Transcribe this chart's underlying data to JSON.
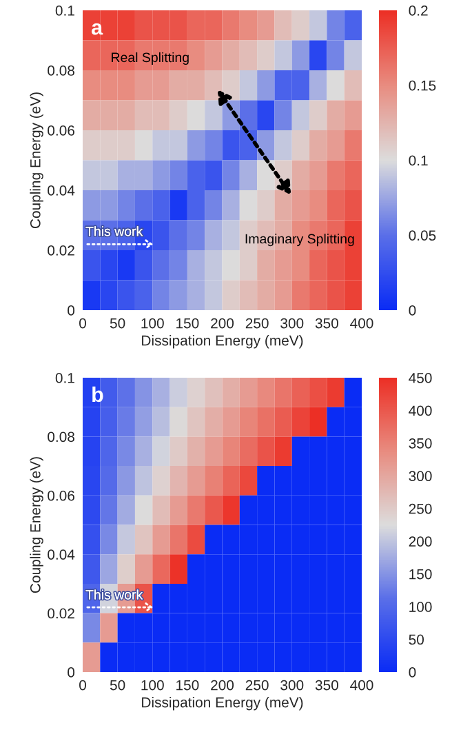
{
  "chart_data": [
    {
      "type": "heatmap",
      "xlabel": "Dissipation Energy (meV)",
      "ylabel": "Coupling Energy (eV)",
      "xlim": [
        0,
        400
      ],
      "xticks": [
        0,
        50,
        100,
        150,
        200,
        250,
        300,
        350,
        400
      ],
      "ylim": [
        0,
        0.1
      ],
      "yticks": [
        0,
        0.02,
        0.04,
        0.06,
        0.08,
        0.1
      ],
      "clim": [
        0,
        0.2
      ],
      "cticks": [
        0,
        0.05,
        0.1,
        0.15,
        0.2
      ],
      "annotations": [
        "a",
        "Real Splitting",
        "Imaginary Splitting",
        "This work"
      ],
      "cells": [
        [
          0.19,
          0.19,
          0.19,
          0.18,
          0.18,
          0.18,
          0.17,
          0.17,
          0.16,
          0.15,
          0.14,
          0.12,
          0.11,
          0.09,
          0.06,
          0.04
        ],
        [
          0.17,
          0.17,
          0.17,
          0.16,
          0.16,
          0.16,
          0.15,
          0.14,
          0.13,
          0.12,
          0.11,
          0.09,
          0.07,
          0.02,
          0.06,
          0.09
        ],
        [
          0.15,
          0.15,
          0.15,
          0.14,
          0.14,
          0.13,
          0.13,
          0.12,
          0.11,
          0.09,
          0.07,
          0.04,
          0.04,
          0.08,
          0.1,
          0.12
        ],
        [
          0.13,
          0.13,
          0.13,
          0.12,
          0.12,
          0.11,
          0.1,
          0.09,
          0.07,
          0.05,
          0.02,
          0.06,
          0.09,
          0.11,
          0.13,
          0.14
        ],
        [
          0.11,
          0.11,
          0.11,
          0.1,
          0.09,
          0.09,
          0.07,
          0.06,
          0.03,
          0.04,
          0.07,
          0.09,
          0.11,
          0.13,
          0.14,
          0.16
        ],
        [
          0.09,
          0.09,
          0.08,
          0.08,
          0.07,
          0.06,
          0.04,
          0.03,
          0.06,
          0.08,
          0.1,
          0.11,
          0.13,
          0.14,
          0.16,
          0.17
        ],
        [
          0.07,
          0.07,
          0.06,
          0.05,
          0.04,
          0.01,
          0.04,
          0.06,
          0.08,
          0.1,
          0.11,
          0.13,
          0.14,
          0.15,
          0.17,
          0.18
        ],
        [
          0.05,
          0.05,
          0.04,
          0.02,
          0.03,
          0.05,
          0.06,
          0.08,
          0.09,
          0.11,
          0.12,
          0.13,
          0.15,
          0.16,
          0.17,
          0.19
        ],
        [
          0.03,
          0.02,
          0.01,
          0.03,
          0.05,
          0.06,
          0.08,
          0.09,
          0.1,
          0.11,
          0.13,
          0.14,
          0.15,
          0.17,
          0.18,
          0.19
        ],
        [
          0.01,
          0.02,
          0.03,
          0.04,
          0.06,
          0.07,
          0.08,
          0.09,
          0.11,
          0.12,
          0.13,
          0.14,
          0.16,
          0.17,
          0.18,
          0.19
        ]
      ]
    },
    {
      "type": "heatmap",
      "xlabel": "Dissipation Energy (meV)",
      "ylabel": "Coupling Energy (eV)",
      "xlim": [
        0,
        400
      ],
      "xticks": [
        0,
        50,
        100,
        150,
        200,
        250,
        300,
        350,
        400
      ],
      "ylim": [
        0,
        0.1
      ],
      "yticks": [
        0,
        0.02,
        0.04,
        0.06,
        0.08,
        0.1
      ],
      "clim": [
        0,
        450
      ],
      "cticks": [
        0,
        50,
        100,
        150,
        200,
        250,
        300,
        350,
        400,
        450
      ],
      "annotations": [
        "b",
        "This work"
      ],
      "cells": [
        [
          35,
          80,
          115,
          150,
          180,
          210,
          240,
          265,
          290,
          315,
          340,
          365,
          390,
          410,
          435,
          0
        ],
        [
          40,
          85,
          125,
          160,
          195,
          230,
          260,
          290,
          315,
          345,
          370,
          395,
          425,
          450,
          0,
          0
        ],
        [
          40,
          95,
          140,
          180,
          215,
          250,
          285,
          315,
          345,
          375,
          405,
          435,
          0,
          0,
          0,
          0
        ],
        [
          45,
          105,
          155,
          200,
          240,
          280,
          315,
          350,
          385,
          420,
          0,
          0,
          0,
          0,
          0,
          0
        ],
        [
          50,
          120,
          175,
          225,
          270,
          315,
          360,
          400,
          440,
          0,
          0,
          0,
          0,
          0,
          0,
          0
        ],
        [
          60,
          140,
          205,
          260,
          315,
          365,
          415,
          0,
          0,
          0,
          0,
          0,
          0,
          0,
          0,
          0
        ],
        [
          75,
          170,
          245,
          315,
          380,
          445,
          0,
          0,
          0,
          0,
          0,
          0,
          0,
          0,
          0,
          0
        ],
        [
          95,
          215,
          315,
          405,
          0,
          0,
          0,
          0,
          0,
          0,
          0,
          0,
          0,
          0,
          0,
          0
        ],
        [
          140,
          315,
          0,
          0,
          0,
          0,
          0,
          0,
          0,
          0,
          0,
          0,
          0,
          0,
          0,
          0
        ],
        [
          315,
          0,
          0,
          0,
          0,
          0,
          0,
          0,
          0,
          0,
          0,
          0,
          0,
          0,
          0,
          0
        ]
      ]
    }
  ]
}
